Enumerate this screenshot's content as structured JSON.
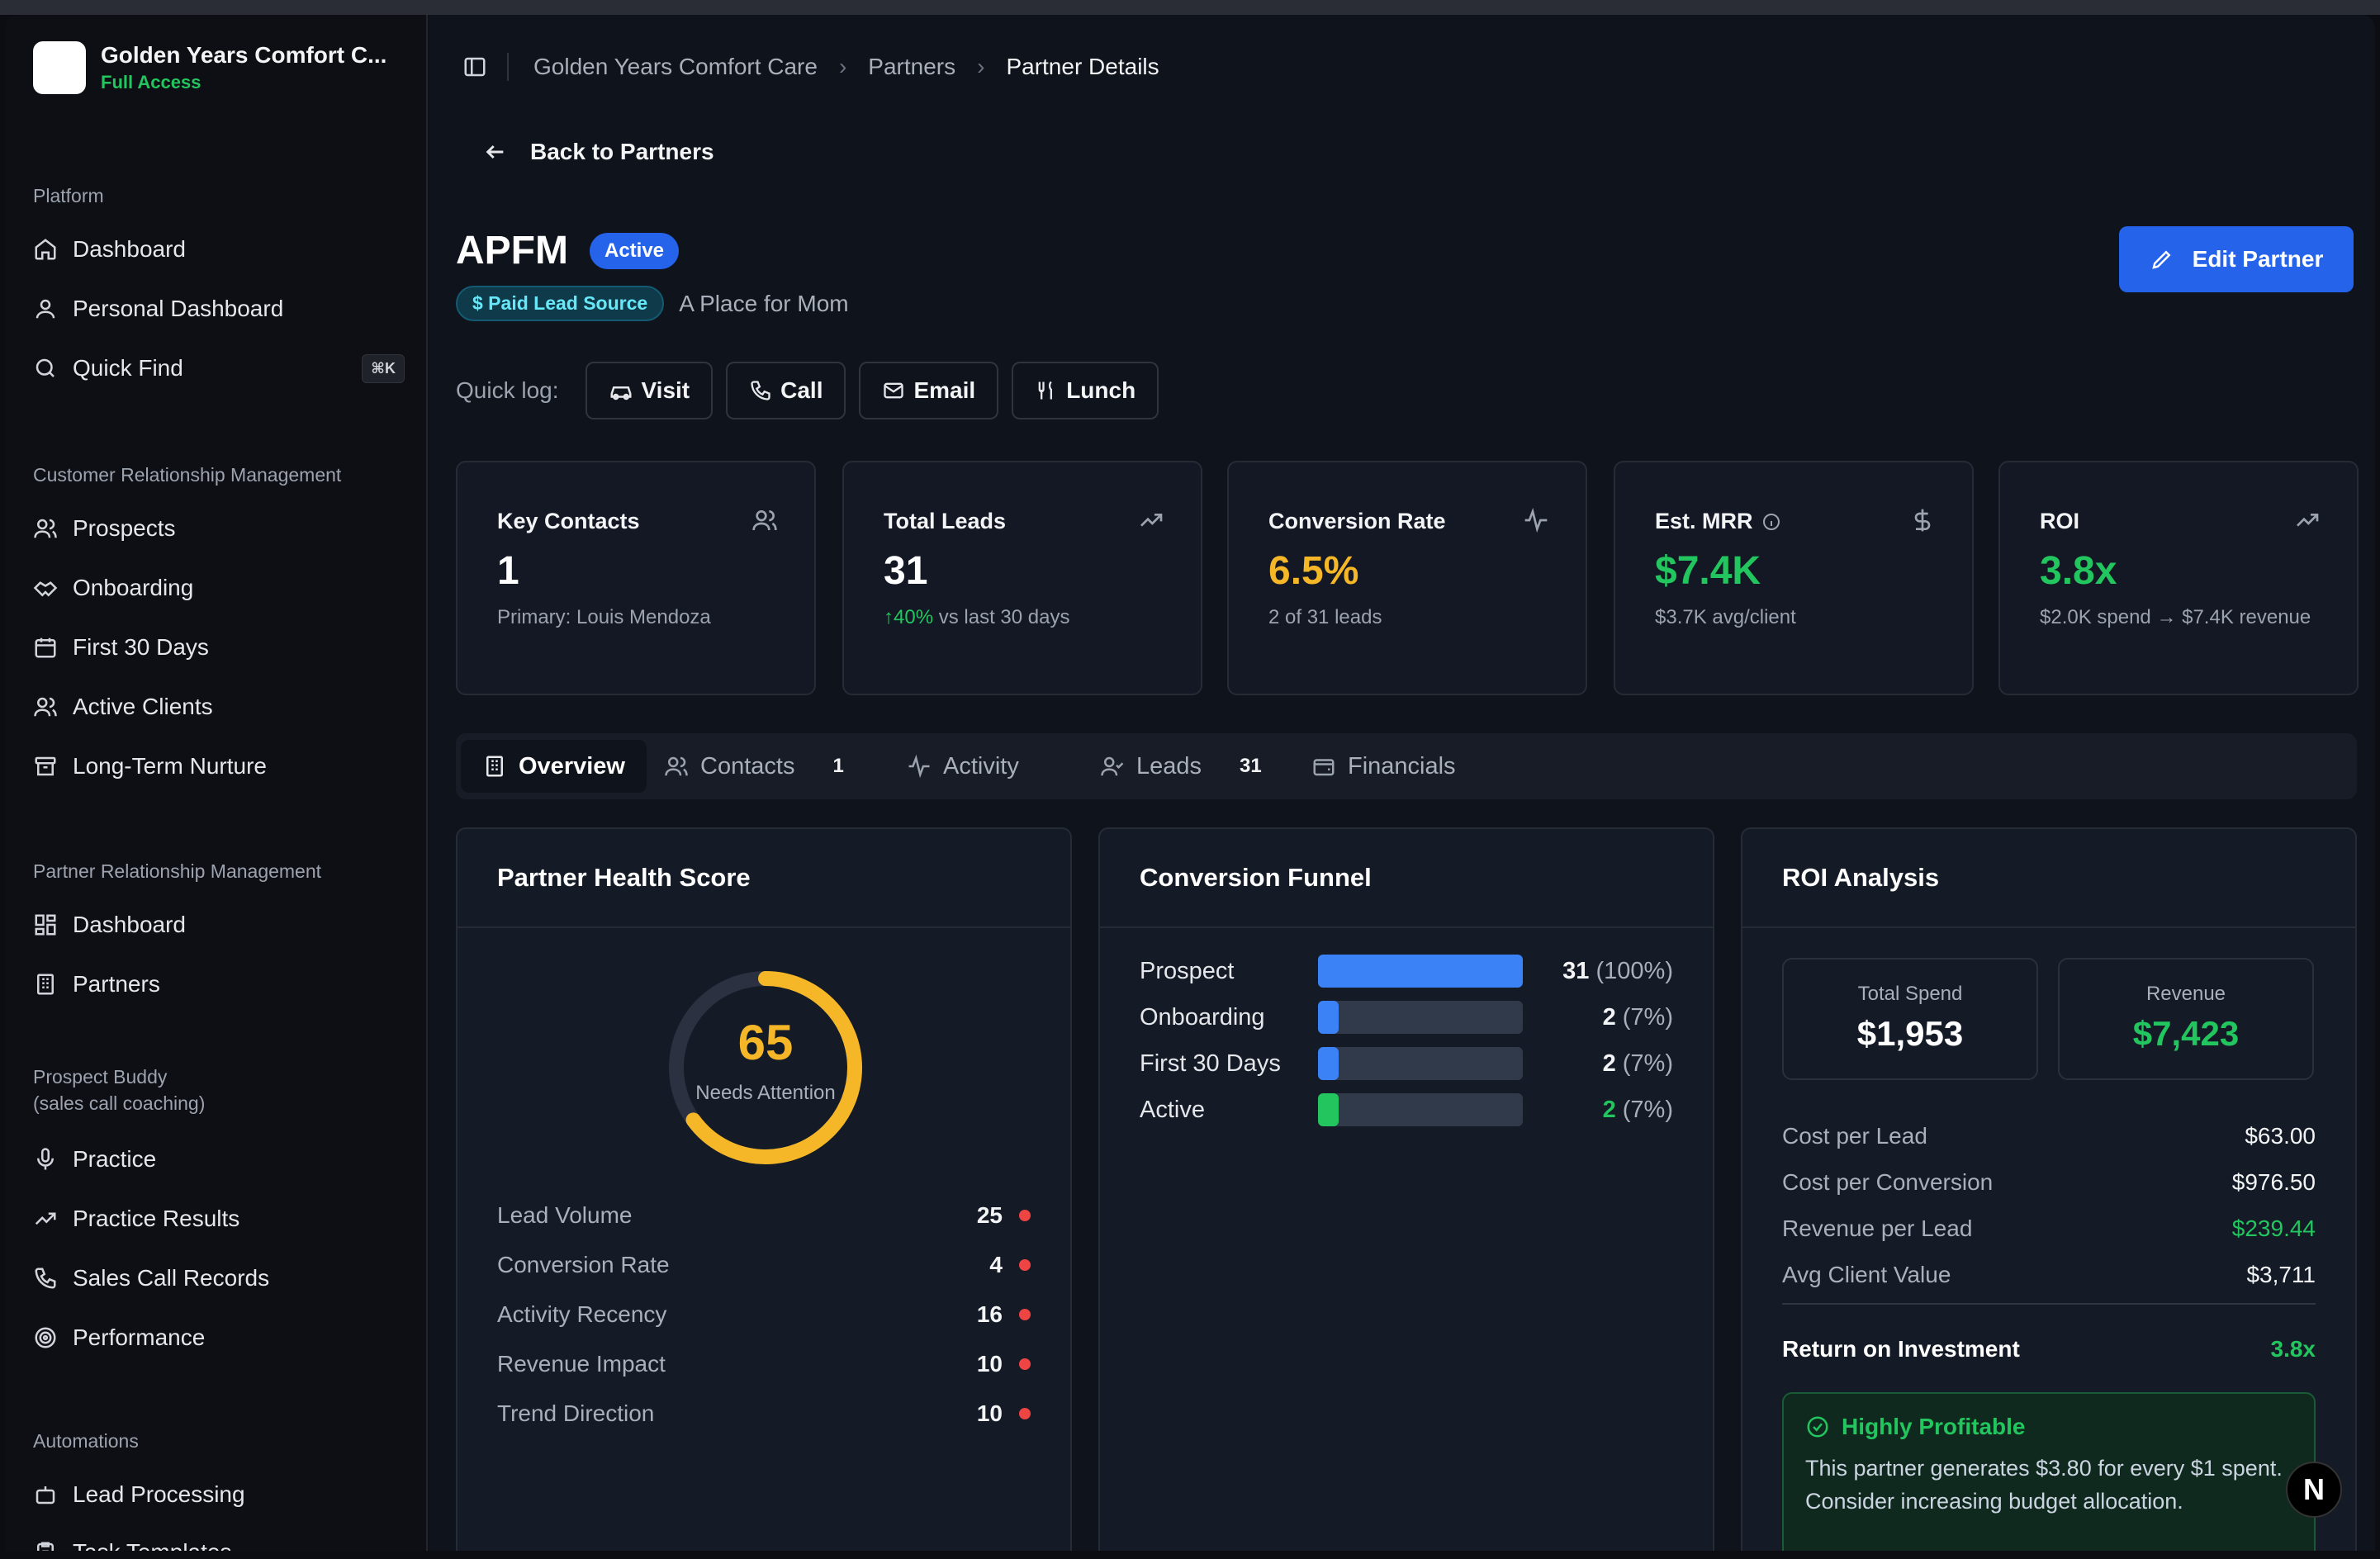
{
  "org": {
    "name": "Golden Years Comfort C...",
    "access": "Full Access"
  },
  "sidebar": {
    "platform_label": "Platform",
    "platform": [
      {
        "label": "Dashboard",
        "icon": "home-icon"
      },
      {
        "label": "Personal Dashboard",
        "icon": "user-icon"
      },
      {
        "label": "Quick Find",
        "icon": "search-icon",
        "shortcut": "⌘K"
      }
    ],
    "crm_label": "Customer Relationship Management",
    "crm": [
      {
        "label": "Prospects",
        "icon": "users-icon"
      },
      {
        "label": "Onboarding",
        "icon": "handshake-icon"
      },
      {
        "label": "First 30 Days",
        "icon": "calendar-icon"
      },
      {
        "label": "Active Clients",
        "icon": "user-check-icon"
      },
      {
        "label": "Long-Term Nurture",
        "icon": "archive-icon"
      }
    ],
    "prm_label": "Partner Relationship Management",
    "prm": [
      {
        "label": "Dashboard",
        "icon": "grid-icon"
      },
      {
        "label": "Partners",
        "icon": "building-icon"
      }
    ],
    "buddy_label": "Prospect Buddy",
    "buddy_sub": "(sales call coaching)",
    "buddy": [
      {
        "label": "Practice",
        "icon": "mic-icon"
      },
      {
        "label": "Practice Results",
        "icon": "trend-icon"
      },
      {
        "label": "Sales Call Records",
        "icon": "phone-icon"
      },
      {
        "label": "Performance",
        "icon": "target-icon"
      }
    ],
    "auto_label": "Automations",
    "auto": [
      {
        "label": "Lead Processing",
        "icon": "bot-icon"
      },
      {
        "label": "Task Templates",
        "icon": "clipboard-icon"
      }
    ]
  },
  "breadcrumb": [
    "Golden Years Comfort Care",
    "Partners",
    "Partner Details"
  ],
  "back_label": "Back to Partners",
  "partner": {
    "name": "APFM",
    "status": "Active",
    "source_badge": "$ Paid Lead Source",
    "full_name": "A Place for Mom"
  },
  "edit_label": "Edit Partner",
  "quick_log": {
    "label": "Quick log:",
    "buttons": [
      "Visit",
      "Call",
      "Email",
      "Lunch"
    ]
  },
  "stats": [
    {
      "title": "Key Contacts",
      "value": "1",
      "sub": "Primary: Louis Mendoza",
      "icon": "users-icon"
    },
    {
      "title": "Total Leads",
      "value": "31",
      "sub_up": "↑40%",
      "sub": " vs last 30 days",
      "icon": "trending-up-icon"
    },
    {
      "title": "Conversion Rate",
      "value": "6.5%",
      "sub": "2 of 31 leads",
      "icon": "activity-icon",
      "color": "#f5b727"
    },
    {
      "title": "Est. MRR",
      "value": "$7.4K",
      "sub": "$3.7K avg/client",
      "icon": "dollar-icon",
      "color": "#22c55e"
    },
    {
      "title": "ROI",
      "value": "3.8x",
      "sub": "$2.0K spend → $7.4K revenue",
      "icon": "trending-up-icon",
      "color": "#22c55e"
    }
  ],
  "tabs": [
    {
      "label": "Overview"
    },
    {
      "label": "Contacts",
      "count": "1"
    },
    {
      "label": "Activity"
    },
    {
      "label": "Leads",
      "count": "31"
    },
    {
      "label": "Financials"
    }
  ],
  "health": {
    "title": "Partner Health Score",
    "score": "65",
    "score_fraction": 0.65,
    "status": "Needs Attention",
    "rows": [
      {
        "label": "Lead Volume",
        "value": "25"
      },
      {
        "label": "Conversion Rate",
        "value": "4"
      },
      {
        "label": "Activity Recency",
        "value": "16"
      },
      {
        "label": "Revenue Impact",
        "value": "10"
      },
      {
        "label": "Trend Direction",
        "value": "10"
      }
    ]
  },
  "funnel": {
    "title": "Conversion Funnel",
    "rows": [
      {
        "label": "Prospect",
        "value": "31",
        "pct": "(100%)",
        "fraction": 1.0,
        "color": "#3b82f6"
      },
      {
        "label": "Onboarding",
        "value": "2",
        "pct": "(7%)",
        "fraction": 0.07,
        "color": "#3b82f6"
      },
      {
        "label": "First 30 Days",
        "value": "2",
        "pct": "(7%)",
        "fraction": 0.07,
        "color": "#3b82f6"
      },
      {
        "label": "Active",
        "value": "2",
        "pct": "(7%)",
        "fraction": 0.07,
        "color": "#22c55e"
      }
    ]
  },
  "roi": {
    "title": "ROI Analysis",
    "total_spend_label": "Total Spend",
    "total_spend": "$1,953",
    "revenue_label": "Revenue",
    "revenue": "$7,423",
    "rows": [
      {
        "label": "Cost per Lead",
        "value": "$63.00"
      },
      {
        "label": "Cost per Conversion",
        "value": "$976.50"
      },
      {
        "label": "Revenue per Lead",
        "value": "$239.44"
      },
      {
        "label": "Avg Client Value",
        "value": "$3,711"
      }
    ],
    "return_label": "Return on Investment",
    "return_value": "3.8x",
    "profit_title": "Highly Profitable",
    "profit_desc": "This partner generates $3.80 for every $1 spent. Consider increasing budget allocation."
  },
  "fab_label": "N"
}
